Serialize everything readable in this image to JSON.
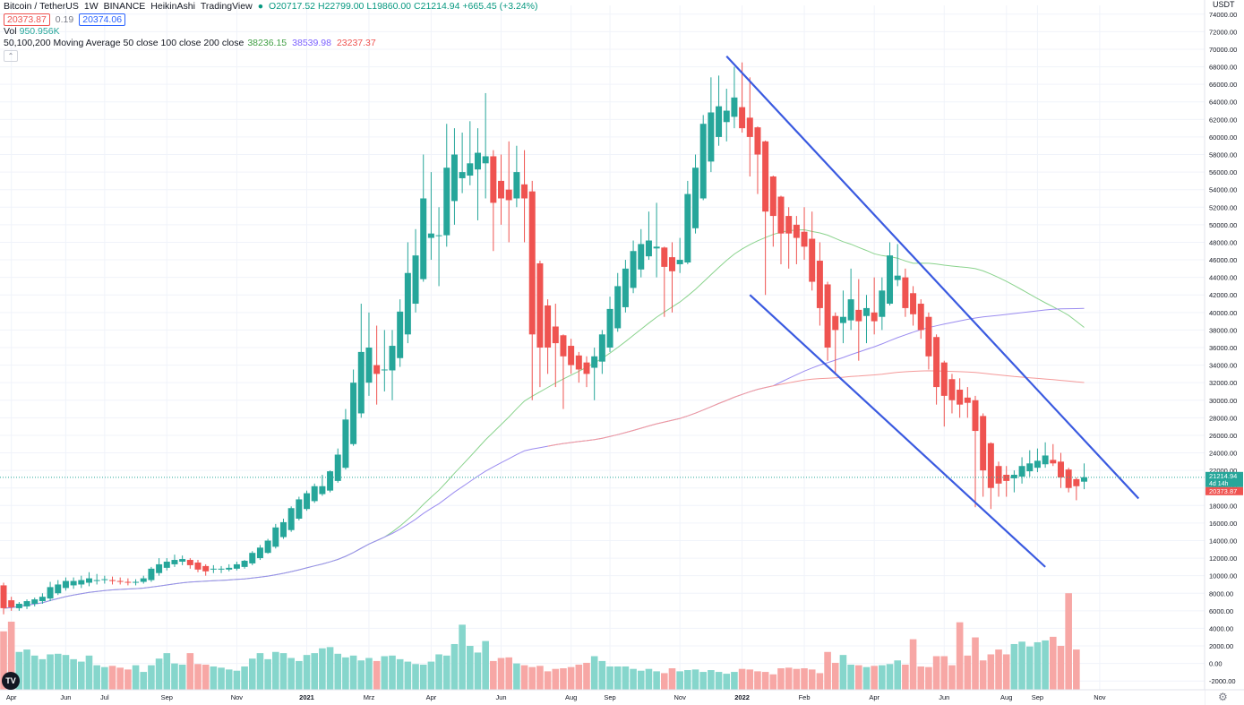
{
  "header": {
    "symbol": "Bitcoin / TetherUS",
    "interval": "1W",
    "exchange": "BINANCE",
    "chart_style": "HeikinAshi",
    "source": "TradingView",
    "ohlc": {
      "open": "O20717.52",
      "high": "H22799.00",
      "low": "L19860.00",
      "close": "C21214.94",
      "change": "+665.45 (+3.24%)"
    },
    "bid": "20373.87",
    "spread": "0.19",
    "ask": "20374.06"
  },
  "volume_legend": {
    "label": "Vol",
    "value": "950.956K"
  },
  "ma_legend": {
    "label": "50,100,200 Moving Average 50 close 100 close 200 close",
    "ma50": "38236.15",
    "ma100": "38539.98",
    "ma200": "23237.37"
  },
  "price_axis": {
    "currency": "USDT",
    "last_price": "21214.94",
    "countdown": "4d 14h",
    "bid_label": "20373.87"
  },
  "colors": {
    "up": "#26a69a",
    "down": "#ef5350",
    "vol_up": "#86d6cc",
    "vol_down": "#f7a7a5",
    "ma50": "#8ad38d",
    "ma100": "#9b8cf0",
    "ma200": "#f49a9a",
    "trendline": "#3a5ae0"
  },
  "chart_data": {
    "type": "candlestick",
    "style": "HeikinAshi",
    "timeframe": "1W",
    "x_ticks": [
      "Apr",
      "Jun",
      "Jul",
      "Sep",
      "Nov",
      "2021",
      "Mrz",
      "Apr",
      "Jun",
      "Aug",
      "Sep",
      "Nov",
      "2022",
      "Feb",
      "Apr",
      "Jun",
      "Aug",
      "Sep",
      "Nov"
    ],
    "y_ticks": [
      74000,
      72000,
      70000,
      68000,
      66000,
      64000,
      62000,
      60000,
      58000,
      56000,
      54000,
      52000,
      50000,
      48000,
      46000,
      44000,
      42000,
      40000,
      38000,
      36000,
      34000,
      32000,
      30000,
      28000,
      26000,
      24000,
      22000,
      20000,
      18000,
      16000,
      14000,
      12000,
      10000,
      8000,
      6000,
      4000,
      2000,
      0,
      -2000
    ],
    "ylim": [
      -3000,
      75000
    ],
    "candles": [
      {
        "o": 8900,
        "h": 9200,
        "l": 5600,
        "c": 6300
      },
      {
        "o": 7200,
        "h": 7600,
        "l": 6000,
        "c": 6400
      },
      {
        "o": 6300,
        "h": 7000,
        "l": 6000,
        "c": 6800
      },
      {
        "o": 6500,
        "h": 7300,
        "l": 6200,
        "c": 7100
      },
      {
        "o": 6800,
        "h": 7500,
        "l": 6500,
        "c": 7300
      },
      {
        "o": 7100,
        "h": 8000,
        "l": 6800,
        "c": 7600
      },
      {
        "o": 7400,
        "h": 9300,
        "l": 7100,
        "c": 8700
      },
      {
        "o": 8000,
        "h": 9500,
        "l": 7800,
        "c": 9000
      },
      {
        "o": 8600,
        "h": 9800,
        "l": 8300,
        "c": 9400
      },
      {
        "o": 8900,
        "h": 9800,
        "l": 8500,
        "c": 9400
      },
      {
        "o": 9000,
        "h": 10000,
        "l": 8600,
        "c": 9500
      },
      {
        "o": 9200,
        "h": 10400,
        "l": 8800,
        "c": 9700
      },
      {
        "o": 9400,
        "h": 10200,
        "l": 9000,
        "c": 9500
      },
      {
        "o": 9500,
        "h": 10000,
        "l": 9100,
        "c": 9600
      },
      {
        "o": 9500,
        "h": 9900,
        "l": 9000,
        "c": 9400
      },
      {
        "o": 9400,
        "h": 9800,
        "l": 9000,
        "c": 9300
      },
      {
        "o": 9300,
        "h": 9700,
        "l": 8900,
        "c": 9200
      },
      {
        "o": 9200,
        "h": 9600,
        "l": 8900,
        "c": 9300
      },
      {
        "o": 9300,
        "h": 10000,
        "l": 9100,
        "c": 9700
      },
      {
        "o": 9500,
        "h": 11000,
        "l": 9300,
        "c": 10800
      },
      {
        "o": 10300,
        "h": 12000,
        "l": 10000,
        "c": 11300
      },
      {
        "o": 10900,
        "h": 12000,
        "l": 10600,
        "c": 11600
      },
      {
        "o": 11300,
        "h": 12400,
        "l": 11000,
        "c": 11800
      },
      {
        "o": 11600,
        "h": 12300,
        "l": 11200,
        "c": 11900
      },
      {
        "o": 11800,
        "h": 12000,
        "l": 10800,
        "c": 11200
      },
      {
        "o": 11500,
        "h": 11800,
        "l": 10400,
        "c": 10700
      },
      {
        "o": 11100,
        "h": 11300,
        "l": 10000,
        "c": 10500
      },
      {
        "o": 10700,
        "h": 11200,
        "l": 10300,
        "c": 10800
      },
      {
        "o": 10700,
        "h": 11100,
        "l": 10300,
        "c": 10800
      },
      {
        "o": 10700,
        "h": 11300,
        "l": 10500,
        "c": 10900
      },
      {
        "o": 10800,
        "h": 11600,
        "l": 10600,
        "c": 11300
      },
      {
        "o": 11000,
        "h": 11800,
        "l": 10800,
        "c": 11700
      },
      {
        "o": 11400,
        "h": 12800,
        "l": 11200,
        "c": 12600
      },
      {
        "o": 12000,
        "h": 13500,
        "l": 11800,
        "c": 13200
      },
      {
        "o": 12600,
        "h": 14200,
        "l": 12500,
        "c": 14000
      },
      {
        "o": 13300,
        "h": 15900,
        "l": 13100,
        "c": 15500
      },
      {
        "o": 14400,
        "h": 16500,
        "l": 14200,
        "c": 16100
      },
      {
        "o": 15200,
        "h": 17900,
        "l": 15000,
        "c": 17700
      },
      {
        "o": 16500,
        "h": 19000,
        "l": 16300,
        "c": 18700
      },
      {
        "o": 17600,
        "h": 19700,
        "l": 17400,
        "c": 19400
      },
      {
        "o": 18500,
        "h": 20500,
        "l": 18300,
        "c": 20200
      },
      {
        "o": 19300,
        "h": 21500,
        "l": 19100,
        "c": 20200
      },
      {
        "o": 19700,
        "h": 22000,
        "l": 19500,
        "c": 21900
      },
      {
        "o": 20800,
        "h": 24500,
        "l": 20600,
        "c": 23800
      },
      {
        "o": 22300,
        "h": 29000,
        "l": 22100,
        "c": 27800
      },
      {
        "o": 25000,
        "h": 33500,
        "l": 24800,
        "c": 32000
      },
      {
        "o": 28500,
        "h": 41000,
        "l": 28000,
        "c": 35500
      },
      {
        "o": 32000,
        "h": 40000,
        "l": 30500,
        "c": 36000
      },
      {
        "o": 34000,
        "h": 38500,
        "l": 29500,
        "c": 33000
      },
      {
        "o": 33500,
        "h": 38000,
        "l": 31000,
        "c": 33500
      },
      {
        "o": 33400,
        "h": 38000,
        "l": 30000,
        "c": 36200
      },
      {
        "o": 34800,
        "h": 41500,
        "l": 33800,
        "c": 40100
      },
      {
        "o": 37500,
        "h": 48000,
        "l": 36500,
        "c": 44500
      },
      {
        "o": 41000,
        "h": 49500,
        "l": 40000,
        "c": 46500
      },
      {
        "o": 43800,
        "h": 58000,
        "l": 43500,
        "c": 53000
      },
      {
        "o": 48500,
        "h": 56000,
        "l": 46000,
        "c": 49000
      },
      {
        "o": 48700,
        "h": 52000,
        "l": 43000,
        "c": 48800
      },
      {
        "o": 48800,
        "h": 61500,
        "l": 47500,
        "c": 56500
      },
      {
        "o": 52700,
        "h": 61000,
        "l": 50000,
        "c": 58000
      },
      {
        "o": 55300,
        "h": 60500,
        "l": 53600,
        "c": 56000
      },
      {
        "o": 55600,
        "h": 61800,
        "l": 54500,
        "c": 57000
      },
      {
        "o": 56300,
        "h": 61000,
        "l": 50500,
        "c": 58200
      },
      {
        "o": 57000,
        "h": 65000,
        "l": 53000,
        "c": 57800
      },
      {
        "o": 57800,
        "h": 58500,
        "l": 47000,
        "c": 52500
      },
      {
        "o": 55000,
        "h": 58000,
        "l": 50000,
        "c": 53000
      },
      {
        "o": 54000,
        "h": 59500,
        "l": 48000,
        "c": 52800
      },
      {
        "o": 53000,
        "h": 59000,
        "l": 52000,
        "c": 56000
      },
      {
        "o": 54600,
        "h": 58500,
        "l": 48000,
        "c": 53000
      },
      {
        "o": 53800,
        "h": 55000,
        "l": 30000,
        "c": 37500
      },
      {
        "o": 45600,
        "h": 45900,
        "l": 31500,
        "c": 36000
      },
      {
        "o": 40800,
        "h": 41500,
        "l": 33000,
        "c": 36000
      },
      {
        "o": 38400,
        "h": 41000,
        "l": 31500,
        "c": 36500
      },
      {
        "o": 37400,
        "h": 37500,
        "l": 29000,
        "c": 35000
      },
      {
        "o": 36200,
        "h": 37000,
        "l": 33000,
        "c": 34000
      },
      {
        "o": 35100,
        "h": 35500,
        "l": 32000,
        "c": 33500
      },
      {
        "o": 34300,
        "h": 35000,
        "l": 31500,
        "c": 33000
      },
      {
        "o": 33700,
        "h": 36000,
        "l": 30000,
        "c": 35000
      },
      {
        "o": 34400,
        "h": 38000,
        "l": 33000,
        "c": 37500
      },
      {
        "o": 36000,
        "h": 41800,
        "l": 35500,
        "c": 40400
      },
      {
        "o": 38200,
        "h": 44500,
        "l": 37800,
        "c": 43000
      },
      {
        "o": 40600,
        "h": 46000,
        "l": 40000,
        "c": 45000
      },
      {
        "o": 42800,
        "h": 48200,
        "l": 42200,
        "c": 47000
      },
      {
        "o": 44900,
        "h": 49500,
        "l": 44000,
        "c": 47800
      },
      {
        "o": 46400,
        "h": 51500,
        "l": 46000,
        "c": 48200
      },
      {
        "o": 47300,
        "h": 52500,
        "l": 44000,
        "c": 47500
      },
      {
        "o": 47400,
        "h": 47500,
        "l": 39500,
        "c": 45200
      },
      {
        "o": 46300,
        "h": 48000,
        "l": 40000,
        "c": 44700
      },
      {
        "o": 45500,
        "h": 48500,
        "l": 44500,
        "c": 46000
      },
      {
        "o": 45700,
        "h": 55000,
        "l": 45500,
        "c": 53500
      },
      {
        "o": 49600,
        "h": 58000,
        "l": 49000,
        "c": 56500
      },
      {
        "o": 53000,
        "h": 62500,
        "l": 52800,
        "c": 61500
      },
      {
        "o": 57200,
        "h": 66800,
        "l": 56000,
        "c": 62800
      },
      {
        "o": 60000,
        "h": 67000,
        "l": 59000,
        "c": 63500
      },
      {
        "o": 61700,
        "h": 65500,
        "l": 59500,
        "c": 63000
      },
      {
        "o": 62300,
        "h": 68000,
        "l": 61000,
        "c": 64500
      },
      {
        "o": 63400,
        "h": 68500,
        "l": 60500,
        "c": 61000
      },
      {
        "o": 62200,
        "h": 66800,
        "l": 55500,
        "c": 60000
      },
      {
        "o": 61100,
        "h": 61200,
        "l": 53500,
        "c": 58000
      },
      {
        "o": 59500,
        "h": 59600,
        "l": 42000,
        "c": 51500
      },
      {
        "o": 55500,
        "h": 55600,
        "l": 47500,
        "c": 51000
      },
      {
        "o": 53200,
        "h": 53300,
        "l": 45500,
        "c": 49000
      },
      {
        "o": 51000,
        "h": 52000,
        "l": 45000,
        "c": 49000
      },
      {
        "o": 50000,
        "h": 51000,
        "l": 45500,
        "c": 48500
      },
      {
        "o": 49200,
        "h": 52000,
        "l": 46000,
        "c": 47500
      },
      {
        "o": 48400,
        "h": 51500,
        "l": 42500,
        "c": 43500
      },
      {
        "o": 45900,
        "h": 48000,
        "l": 38500,
        "c": 40500
      },
      {
        "o": 43200,
        "h": 43500,
        "l": 34500,
        "c": 36000
      },
      {
        "o": 39600,
        "h": 40000,
        "l": 33000,
        "c": 38000
      },
      {
        "o": 38800,
        "h": 42500,
        "l": 36500,
        "c": 39500
      },
      {
        "o": 39100,
        "h": 45000,
        "l": 38000,
        "c": 41500
      },
      {
        "o": 40300,
        "h": 43800,
        "l": 34500,
        "c": 39000
      },
      {
        "o": 39600,
        "h": 42000,
        "l": 36500,
        "c": 40500
      },
      {
        "o": 40000,
        "h": 44000,
        "l": 37500,
        "c": 39000
      },
      {
        "o": 39500,
        "h": 44000,
        "l": 38000,
        "c": 42500
      },
      {
        "o": 41000,
        "h": 48000,
        "l": 40800,
        "c": 46500
      },
      {
        "o": 43700,
        "h": 47800,
        "l": 43000,
        "c": 44200
      },
      {
        "o": 44000,
        "h": 45000,
        "l": 39500,
        "c": 40500
      },
      {
        "o": 42200,
        "h": 43000,
        "l": 38500,
        "c": 39800
      },
      {
        "o": 41000,
        "h": 41500,
        "l": 37000,
        "c": 38000
      },
      {
        "o": 39500,
        "h": 40000,
        "l": 33500,
        "c": 35000
      },
      {
        "o": 37200,
        "h": 37500,
        "l": 29500,
        "c": 31500
      },
      {
        "o": 34300,
        "h": 34500,
        "l": 27000,
        "c": 30500
      },
      {
        "o": 32400,
        "h": 33000,
        "l": 28500,
        "c": 30000
      },
      {
        "o": 31200,
        "h": 32500,
        "l": 28000,
        "c": 29500
      },
      {
        "o": 30300,
        "h": 31500,
        "l": 28000,
        "c": 29700
      },
      {
        "o": 30000,
        "h": 30500,
        "l": 17800,
        "c": 26500
      },
      {
        "o": 28200,
        "h": 28500,
        "l": 19000,
        "c": 22000
      },
      {
        "o": 25100,
        "h": 25200,
        "l": 17600,
        "c": 20000
      },
      {
        "o": 22500,
        "h": 23000,
        "l": 19000,
        "c": 20500
      },
      {
        "o": 21500,
        "h": 22500,
        "l": 19000,
        "c": 20800
      },
      {
        "o": 21100,
        "h": 22000,
        "l": 19500,
        "c": 21500
      },
      {
        "o": 21300,
        "h": 23500,
        "l": 20500,
        "c": 22500
      },
      {
        "o": 21900,
        "h": 24300,
        "l": 21300,
        "c": 22800
      },
      {
        "o": 22300,
        "h": 24500,
        "l": 21800,
        "c": 23100
      },
      {
        "o": 22700,
        "h": 25200,
        "l": 22300,
        "c": 23700
      },
      {
        "o": 23200,
        "h": 25000,
        "l": 22500,
        "c": 22800
      },
      {
        "o": 23000,
        "h": 24000,
        "l": 20000,
        "c": 21200
      },
      {
        "o": 22100,
        "h": 22300,
        "l": 19500,
        "c": 20000
      },
      {
        "o": 21000,
        "h": 21200,
        "l": 18600,
        "c": 20200
      },
      {
        "o": 20717.52,
        "h": 22799,
        "l": 19860,
        "c": 21214.94
      }
    ],
    "volume": [
      8.2,
      9.8,
      4.8,
      5.2,
      4.2,
      3.6,
      4.4,
      4.5,
      4.3,
      3.6,
      3.2,
      4.2,
      2.6,
      2.3,
      2.5,
      2.2,
      1.9,
      2.6,
      1.5,
      2.6,
      3.7,
      4.6,
      2.9,
      2.7,
      4.6,
      2.8,
      2.7,
      2.4,
      2.2,
      1.9,
      1.7,
      2.4,
      3.7,
      4.6,
      3.6,
      4.8,
      4.6,
      3.8,
      3.3,
      4.3,
      4.6,
      5.4,
      5.6,
      4.5,
      3.9,
      4.2,
      3.4,
      3.8,
      3.3,
      4.1,
      4.2,
      3.6,
      3.2,
      2.8,
      2.7,
      3.2,
      4.4,
      4.2,
      6.1,
      9.3,
      5.8,
      4.7,
      6.6,
      3.3,
      3.8,
      3.9,
      2.9,
      2.6,
      2.3,
      2.5,
      1.6,
      2.0,
      2.1,
      2.3,
      2.7,
      3.0,
      4.1,
      3.3,
      2.4,
      2.4,
      2.4,
      2.0,
      1.7,
      2.0,
      1.6,
      1.3,
      2.1,
      1.6,
      1.8,
      1.9,
      1.5,
      1.8,
      1.5,
      1.2,
      1.5,
      2.0,
      1.9,
      1.6,
      1.5,
      1.1,
      2.1,
      2.2,
      2.0,
      2.1,
      1.9,
      1.3,
      4.8,
      3.0,
      4.3,
      2.7,
      2.6,
      2.3,
      2.5,
      2.6,
      2.8,
      3.4,
      2.7,
      6.9,
      2.4,
      2.3,
      4.1,
      4.1,
      2.6,
      9.7,
      4.2,
      7.2,
      3.4,
      4.4,
      5.2,
      4.4,
      6.1,
      6.5,
      5.7,
      6.4,
      6.7,
      7.3,
      5.8,
      14.5,
      5.2
    ],
    "moving_averages": [
      {
        "name": "MA 50",
        "value": "38236.15"
      },
      {
        "name": "MA 100",
        "value": "38539.98"
      },
      {
        "name": "MA 200",
        "value": "23237.37"
      }
    ]
  }
}
